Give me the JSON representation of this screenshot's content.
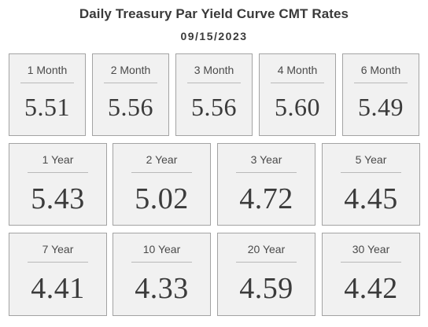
{
  "header": {
    "title": "Daily Treasury Par Yield Curve CMT Rates",
    "date": "09/15/2023"
  },
  "rates": {
    "row1": [
      {
        "label": "1 Month",
        "value": "5.51"
      },
      {
        "label": "2 Month",
        "value": "5.56"
      },
      {
        "label": "3 Month",
        "value": "5.56"
      },
      {
        "label": "4 Month",
        "value": "5.60"
      },
      {
        "label": "6 Month",
        "value": "5.49"
      }
    ],
    "row2": [
      {
        "label": "1 Year",
        "value": "5.43"
      },
      {
        "label": "2 Year",
        "value": "5.02"
      },
      {
        "label": "3 Year",
        "value": "4.72"
      },
      {
        "label": "5 Year",
        "value": "4.45"
      }
    ],
    "row3": [
      {
        "label": "7 Year",
        "value": "4.41"
      },
      {
        "label": "10 Year",
        "value": "4.33"
      },
      {
        "label": "20 Year",
        "value": "4.59"
      },
      {
        "label": "30 Year",
        "value": "4.42"
      }
    ]
  }
}
